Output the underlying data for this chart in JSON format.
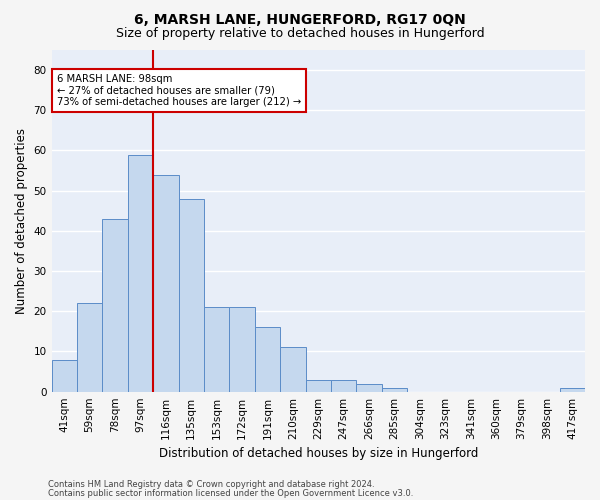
{
  "title": "6, MARSH LANE, HUNGERFORD, RG17 0QN",
  "subtitle": "Size of property relative to detached houses in Hungerford",
  "xlabel": "Distribution of detached houses by size in Hungerford",
  "ylabel": "Number of detached properties",
  "categories": [
    "41sqm",
    "59sqm",
    "78sqm",
    "97sqm",
    "116sqm",
    "135sqm",
    "153sqm",
    "172sqm",
    "191sqm",
    "210sqm",
    "229sqm",
    "247sqm",
    "266sqm",
    "285sqm",
    "304sqm",
    "323sqm",
    "341sqm",
    "360sqm",
    "379sqm",
    "398sqm",
    "417sqm"
  ],
  "values": [
    8,
    22,
    43,
    59,
    54,
    48,
    21,
    21,
    16,
    11,
    3,
    3,
    2,
    1,
    0,
    0,
    0,
    0,
    0,
    0,
    1
  ],
  "bar_color": "#c5d8ee",
  "bar_edge_color": "#5b8cc8",
  "vline_x": 3.5,
  "vline_color": "#cc0000",
  "ylim": [
    0,
    85
  ],
  "yticks": [
    0,
    10,
    20,
    30,
    40,
    50,
    60,
    70,
    80
  ],
  "annotation_text": "6 MARSH LANE: 98sqm\n← 27% of detached houses are smaller (79)\n73% of semi-detached houses are larger (212) →",
  "annotation_box_color": "#ffffff",
  "annotation_box_edge": "#cc0000",
  "footer_line1": "Contains HM Land Registry data © Crown copyright and database right 2024.",
  "footer_line2": "Contains public sector information licensed under the Open Government Licence v3.0.",
  "bg_color": "#e8eef8",
  "grid_color": "#ffffff",
  "title_fontsize": 10,
  "subtitle_fontsize": 9,
  "tick_fontsize": 7.5,
  "ylabel_fontsize": 8.5,
  "xlabel_fontsize": 8.5,
  "footer_fontsize": 6.0
}
